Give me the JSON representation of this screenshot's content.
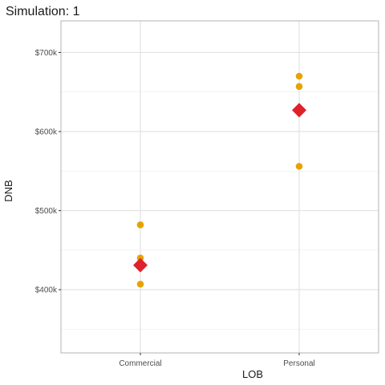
{
  "chart_data": {
    "type": "scatter",
    "title": "Simulation: 1",
    "xlabel": "LOB",
    "ylabel": "DNB",
    "categories": [
      "Commercial",
      "Personal"
    ],
    "ylim": [
      320000,
      740000
    ],
    "y_major_ticks": [
      400000,
      500000,
      600000,
      700000
    ],
    "y_tick_labels": [
      "$400k",
      "$500k",
      "$600k",
      "$700k"
    ],
    "y_minor_ticks": [
      350000,
      450000,
      550000,
      650000
    ],
    "grid": true,
    "legend": "none",
    "series": [
      {
        "marker": "circle",
        "color": "#E6A300",
        "points": [
          {
            "category": "Commercial",
            "y": 482000
          },
          {
            "category": "Commercial",
            "y": 440000
          },
          {
            "category": "Commercial",
            "y": 407000
          },
          {
            "category": "Personal",
            "y": 670000
          },
          {
            "category": "Personal",
            "y": 657000
          },
          {
            "category": "Personal",
            "y": 556000
          }
        ]
      },
      {
        "marker": "diamond",
        "color": "#E0202A",
        "points": [
          {
            "category": "Commercial",
            "y": 431000
          },
          {
            "category": "Personal",
            "y": 627000
          }
        ]
      }
    ]
  }
}
